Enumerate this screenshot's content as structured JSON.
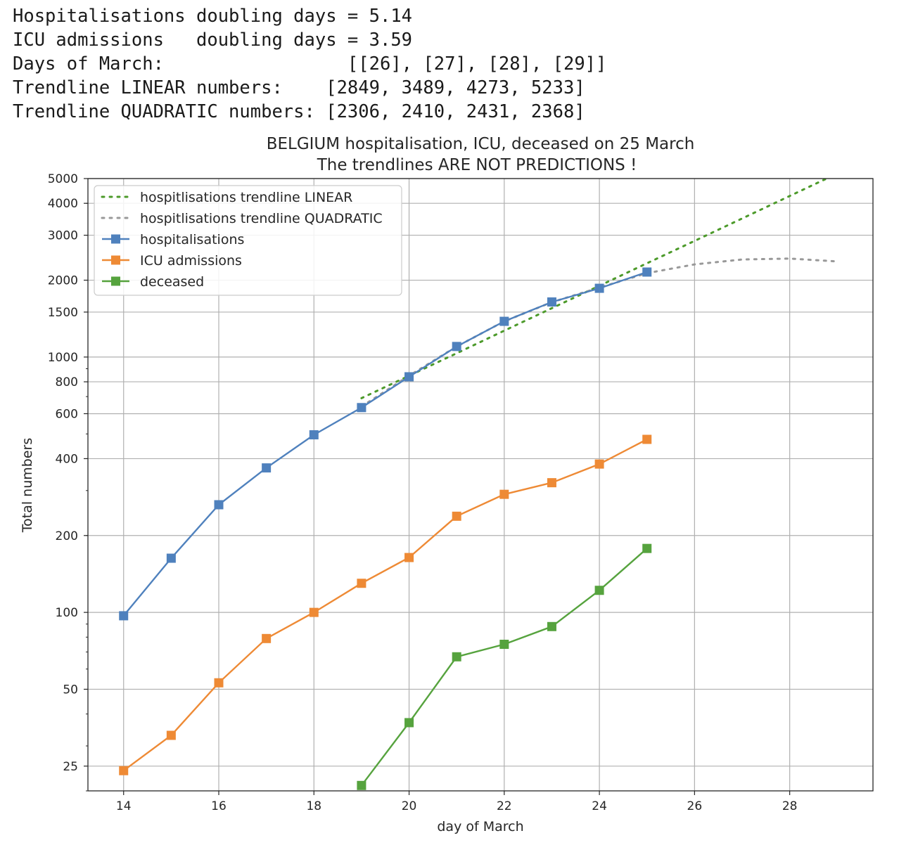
{
  "console_output": {
    "lines": [
      "Hospitalisations doubling days = 5.14",
      "ICU admissions   doubling days = 3.59",
      "Days of March:                 [[26], [27], [28], [29]]",
      "Trendline LINEAR numbers:    [2849, 3489, 4273, 5233]",
      "Trendline QUADRATIC numbers: [2306, 2410, 2431, 2368]"
    ]
  },
  "chart_data": {
    "type": "line",
    "title": "BELGIUM hospitalisation, ICU, deceased on 25 March",
    "subtitle": "The trendlines ARE NOT PREDICTIONS !",
    "xlabel": "day of March",
    "ylabel": "Total numbers",
    "yscale": "log",
    "xlim": [
      13.25,
      29.75
    ],
    "ylim": [
      20,
      5000
    ],
    "xticks": [
      14,
      16,
      18,
      20,
      22,
      24,
      26,
      28
    ],
    "yticks": [
      25,
      50,
      100,
      200,
      400,
      600,
      800,
      1000,
      1500,
      2000,
      3000,
      4000,
      5000
    ],
    "grid": true,
    "legend_position": "top-left",
    "series": [
      {
        "name": "hospitlisations trendline LINEAR",
        "style": "dotted",
        "color": "#4c9a2a",
        "marker": "none",
        "x": [
          19,
          20,
          21,
          22,
          23,
          24,
          25,
          26,
          27,
          28,
          29
        ],
        "values": [
          690,
          845,
          1035,
          1268,
          1553,
          1902,
          2330,
          2849,
          3489,
          4273,
          5233
        ]
      },
      {
        "name": "hospitlisations trendline QUADRATIC",
        "style": "dotted",
        "color": "#999999",
        "marker": "none",
        "x": [
          19,
          20,
          21,
          22,
          23,
          24,
          25,
          26,
          27,
          28,
          29
        ],
        "values": [
          640,
          845,
          1100,
          1380,
          1640,
          1870,
          2130,
          2306,
          2410,
          2431,
          2368
        ]
      },
      {
        "name": "hospitalisations",
        "style": "solid",
        "color": "#4f81bd",
        "marker": "square",
        "x": [
          14,
          15,
          16,
          17,
          18,
          19,
          20,
          21,
          22,
          23,
          24,
          25
        ],
        "values": [
          97,
          163,
          264,
          368,
          496,
          634,
          837,
          1100,
          1380,
          1643,
          1859,
          2152
        ]
      },
      {
        "name": "ICU admissions",
        "style": "solid",
        "color": "#ee8a35",
        "marker": "square",
        "x": [
          14,
          15,
          16,
          17,
          18,
          19,
          20,
          21,
          22,
          23,
          24,
          25
        ],
        "values": [
          24,
          33,
          53,
          79,
          100,
          130,
          164,
          238,
          290,
          322,
          381,
          476
        ]
      },
      {
        "name": "deceased",
        "style": "solid",
        "color": "#56a33e",
        "marker": "square",
        "x": [
          19,
          20,
          21,
          22,
          23,
          24,
          25
        ],
        "values": [
          21,
          37,
          67,
          75,
          88,
          122,
          178
        ]
      }
    ]
  }
}
